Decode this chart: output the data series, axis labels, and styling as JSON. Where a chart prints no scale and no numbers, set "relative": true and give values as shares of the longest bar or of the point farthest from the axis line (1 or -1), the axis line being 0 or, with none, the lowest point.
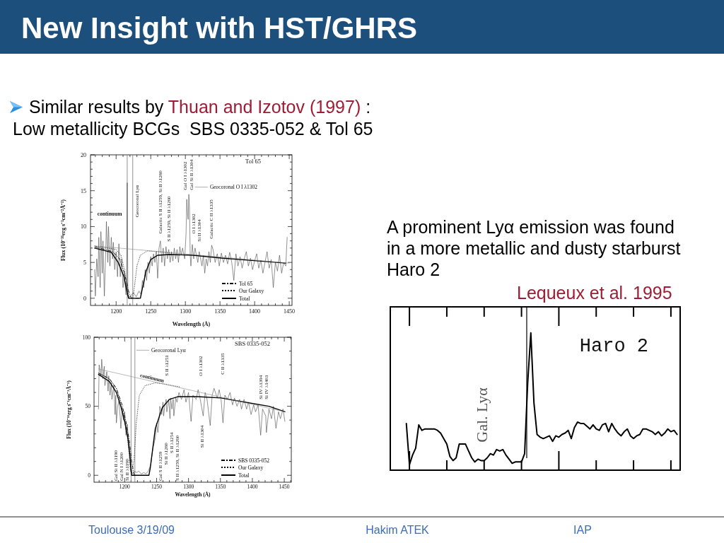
{
  "chart_data": [
    {
      "type": "other",
      "title": "New Insight with HST/GHRS",
      "annotations": [
        "Similar results by",
        "Thuan and Izotov (1997)",
        ":",
        "Low metallicity BCGs  SBS 0335-052 & Tol 65",
        "A prominent Lyα emission was found in a more metallic and dusty starburst Haro 2",
        "Lequeux et al. 1995",
        "Toulouse 3/19/09",
        "Hakim ATEK",
        "IAP"
      ]
    },
    {
      "type": "line",
      "title": "Tol 65",
      "xlabel": "Wavelength (Å)",
      "ylabel": "Flux (10⁻¹⁶erg s⁻¹cm⁻²Å⁻¹)",
      "xlim": [
        1163,
        1454
      ],
      "ylim": [
        -1,
        20
      ],
      "xticks": [
        {
          "value": 1170,
          "label": null
        },
        {
          "value": 1180,
          "label": null
        },
        {
          "value": 1190,
          "label": null
        },
        1200,
        {
          "value": 1210,
          "label": null
        },
        {
          "value": 1220,
          "label": null
        },
        {
          "value": 1230,
          "label": null
        },
        {
          "value": 1240,
          "label": null
        },
        1250,
        {
          "value": 1260,
          "label": null
        },
        {
          "value": 1270,
          "label": null
        },
        {
          "value": 1280,
          "label": null
        },
        {
          "value": 1290,
          "label": null
        },
        1300,
        {
          "value": 1310,
          "label": null
        },
        {
          "value": 1320,
          "label": null
        },
        {
          "value": 1330,
          "label": null
        },
        {
          "value": 1340,
          "label": null
        },
        1350,
        {
          "value": 1360,
          "label": null
        },
        {
          "value": 1370,
          "label": null
        },
        {
          "value": 1380,
          "label": null
        },
        {
          "value": 1390,
          "label": null
        },
        1400,
        {
          "value": 1410,
          "label": null
        },
        {
          "value": 1420,
          "label": null
        },
        {
          "value": 1430,
          "label": null
        },
        {
          "value": 1440,
          "label": null
        },
        1450
      ],
      "yticks": [
        0,
        {
          "value": 1,
          "label": null
        },
        {
          "value": 2,
          "label": null
        },
        {
          "value": 3,
          "label": null
        },
        {
          "value": 4,
          "label": null
        },
        5,
        {
          "value": 6,
          "label": null
        },
        {
          "value": 7,
          "label": null
        },
        {
          "value": 8,
          "label": null
        },
        {
          "value": 9,
          "label": null
        },
        10,
        {
          "value": 11,
          "label": null
        },
        {
          "value": 12,
          "label": null
        },
        {
          "value": 13,
          "label": null
        },
        {
          "value": 14,
          "label": null
        },
        15,
        {
          "value": 16,
          "label": null
        },
        {
          "value": 17,
          "label": null
        },
        {
          "value": 18,
          "label": null
        },
        {
          "value": 19,
          "label": null
        },
        20
      ],
      "legend": "bottom right",
      "series": [
        {
          "color": "#4a4a4a",
          "x": [
            1169,
            1170,
            1172,
            1174,
            1175,
            1177,
            1178,
            1180,
            1181,
            1183,
            1185,
            1186,
            1188,
            1189,
            1191,
            1193,
            1195,
            1196,
            1198,
            1200,
            1202,
            1204,
            1206,
            1208,
            1210,
            1212,
            1214,
            1215,
            1216,
            1217,
            1220,
            1225,
            1229,
            1233,
            1236,
            1238,
            1240,
            1242,
            1244,
            1246,
            1248,
            1250,
            1252,
            1254,
            1256,
            1258,
            1260,
            1262,
            1264,
            1266,
            1268,
            1270,
            1272,
            1274,
            1276,
            1278,
            1280,
            1282,
            1284,
            1286,
            1288,
            1290,
            1292,
            1294,
            1296,
            1299,
            1301,
            1302,
            1303,
            1304,
            1305,
            1306,
            1307,
            1308,
            1310,
            1312,
            1314,
            1316,
            1318,
            1320,
            1322,
            1324,
            1326,
            1328,
            1330,
            1332,
            1334,
            1336,
            1338,
            1340,
            1343,
            1346,
            1349,
            1352,
            1355,
            1358,
            1361,
            1364,
            1367,
            1370,
            1373,
            1376,
            1379,
            1382,
            1385,
            1388,
            1391,
            1394,
            1397,
            1400,
            1403,
            1406,
            1409,
            1412,
            1415,
            1418,
            1421,
            1424,
            1427,
            1430,
            1433,
            1436,
            1439,
            1442,
            1445,
            1447
          ],
          "values": [
            4.0,
            0.3,
            5.5,
            3.0,
            8.5,
            1.5,
            9.3,
            3.5,
            8.0,
            0.3,
            6.5,
            10.7,
            5.0,
            10.0,
            4.5,
            8.5,
            5.5,
            7.8,
            4.0,
            6.5,
            3.0,
            7.6,
            3.0,
            5.5,
            1.5,
            3.5,
            0.5,
            0.5,
            16.1,
            0.3,
            0.2,
            0.8,
            0.2,
            1.0,
            0.5,
            2.5,
            1.5,
            4.0,
            2.5,
            5.0,
            3.5,
            5.8,
            4.5,
            6.2,
            5.0,
            6.5,
            2.8,
            7.0,
            8.0,
            5.0,
            7.0,
            4.5,
            7.2,
            5.5,
            6.8,
            5.0,
            6.5,
            5.2,
            7.0,
            5.5,
            6.8,
            5.0,
            7.2,
            6.0,
            7.0,
            5.5,
            9.0,
            13.8,
            12.0,
            11.0,
            14.5,
            12.5,
            6.0,
            4.5,
            7.5,
            5.5,
            7.0,
            6.0,
            5.0,
            6.5,
            5.5,
            4.5,
            6.0,
            3.5,
            5.5,
            4.5,
            6.5,
            5.0,
            7.4,
            6.8,
            5.0,
            6.2,
            4.5,
            6.3,
            5.0,
            6.0,
            4.8,
            6.4,
            5.0,
            2.5,
            6.2,
            4.5,
            5.8,
            4.2,
            5.5,
            6.5,
            4.5,
            5.6,
            4.0,
            5.2,
            6.2,
            4.2,
            5.3,
            3.5,
            5.0,
            6.5,
            4.2,
            5.4,
            1.5,
            5.0,
            3.8,
            6.0,
            3.5,
            5.0,
            4.5,
            8.5
          ]
        },
        {
          "name": "Tol 65",
          "color": "#000000",
          "line_style": "dashdot",
          "x": [
            1169,
            1195,
            1205,
            1212,
            1218,
            1222,
            1233
          ],
          "values": [
            7.2,
            6.5,
            5.5,
            3.5,
            1.0,
            0,
            0
          ]
        },
        {
          "name": "Our Galaxy",
          "color": "#000000",
          "line_style": "dotted",
          "x": [
            1169,
            1200,
            1207,
            1212,
            1216,
            1219,
            1224,
            1227,
            1230,
            1235,
            1245,
            1260,
            1280
          ],
          "values": [
            7.3,
            6.8,
            6.0,
            4.0,
            1.5,
            0,
            0,
            2.0,
            4.5,
            6.0,
            6.6,
            6.5,
            6.3
          ]
        },
        {
          "name": "Total",
          "color": "#000000",
          "line_style": "solid",
          "x": [
            1169,
            1193,
            1203,
            1211,
            1216,
            1218,
            1235,
            1238,
            1243,
            1250,
            1260,
            1277,
            1311,
            1352,
            1406,
            1445
          ],
          "values": [
            7.0,
            6.4,
            5.0,
            3.1,
            0.8,
            0,
            0,
            1.4,
            3.7,
            5.4,
            6.0,
            6.1,
            6.0,
            5.6,
            5.2,
            4.9
          ]
        },
        {
          "color": "#8a8a8a",
          "x": [
            1169,
            1450
          ],
          "values": [
            7.3,
            4.9
          ]
        }
      ],
      "ref_lines": [
        {
          "axis": "x",
          "value": 1216,
          "color": "#777777"
        },
        {
          "axis": "x",
          "value": 1224,
          "color": "#777777"
        }
      ],
      "annotations": [
        "Geocoronal Lyα",
        "Galactic S II λ1259, Si II λ1260",
        "S II λ1259, Si II λ1260",
        "Gal O I λ1302",
        "Gal Si II λ1304",
        "Geocoronal O I λ1302",
        "O I λ1302",
        "Si II λ1304",
        "Galactic C II λ1335",
        "continuum"
      ]
    },
    {
      "type": "line",
      "title": "SBS 0335-052",
      "xlabel": "Wavelength (Å)",
      "ylabel": "Flux (10⁻¹⁶erg s⁻¹cm⁻²Å⁻¹)",
      "xlim": [
        1152,
        1461
      ],
      "ylim": [
        -5,
        100
      ],
      "xticks": [
        {
          "value": 1160,
          "label": null
        },
        {
          "value": 1170,
          "label": null
        },
        {
          "value": 1180,
          "label": null
        },
        {
          "value": 1190,
          "label": null
        },
        1200,
        {
          "value": 1210,
          "label": null
        },
        {
          "value": 1220,
          "label": null
        },
        {
          "value": 1230,
          "label": null
        },
        {
          "value": 1240,
          "label": null
        },
        1250,
        {
          "value": 1260,
          "label": null
        },
        {
          "value": 1270,
          "label": null
        },
        {
          "value": 1280,
          "label": null
        },
        {
          "value": 1290,
          "label": null
        },
        1300,
        {
          "value": 1310,
          "label": null
        },
        {
          "value": 1320,
          "label": null
        },
        {
          "value": 1330,
          "label": null
        },
        {
          "value": 1340,
          "label": null
        },
        1350,
        {
          "value": 1360,
          "label": null
        },
        {
          "value": 1370,
          "label": null
        },
        {
          "value": 1380,
          "label": null
        },
        {
          "value": 1390,
          "label": null
        },
        1400,
        {
          "value": 1410,
          "label": null
        },
        {
          "value": 1420,
          "label": null
        },
        {
          "value": 1430,
          "label": null
        },
        {
          "value": 1440,
          "label": null
        },
        1450,
        {
          "value": 1460,
          "label": null
        }
      ],
      "yticks": [
        0,
        {
          "value": 10,
          "label": null
        },
        {
          "value": 20,
          "label": null
        },
        {
          "value": 30,
          "label": null
        },
        {
          "value": 40,
          "label": null
        },
        50,
        {
          "value": 60,
          "label": null
        },
        {
          "value": 70,
          "label": null
        },
        {
          "value": 80,
          "label": null
        },
        {
          "value": 90,
          "label": null
        },
        100
      ],
      "legend": "bottom right",
      "series": [
        {
          "color": "#4a4a4a",
          "x": [
            1159,
            1160,
            1163,
            1164,
            1166,
            1168,
            1169,
            1172,
            1174,
            1175,
            1177,
            1179,
            1180,
            1183,
            1185,
            1186,
            1187,
            1189,
            1191,
            1193,
            1194,
            1196,
            1198,
            1200,
            1202,
            1204,
            1206,
            1207,
            1209,
            1211,
            1212,
            1215,
            1219,
            1222,
            1226,
            1230,
            1233,
            1237,
            1241,
            1244,
            1248,
            1250,
            1252,
            1254,
            1255,
            1258,
            1260,
            1261,
            1263,
            1265,
            1266,
            1269,
            1271,
            1272,
            1274,
            1276,
            1277,
            1280,
            1282,
            1285,
            1289,
            1293,
            1296,
            1300,
            1304,
            1307,
            1312,
            1315,
            1318,
            1323,
            1326,
            1329,
            1334,
            1337,
            1340,
            1345,
            1348,
            1351,
            1354,
            1357,
            1361,
            1365,
            1369,
            1372,
            1376,
            1380,
            1383,
            1387,
            1391,
            1394,
            1398,
            1402,
            1405,
            1409,
            1413,
            1416,
            1421,
            1422,
            1426,
            1430,
            1433,
            1437,
            1441,
            1444,
            1448,
            1451
          ],
          "values": [
            48,
            80,
            72,
            84,
            70,
            79,
            65,
            75,
            61,
            72,
            58,
            67,
            55,
            65,
            44,
            58,
            38,
            50,
            54,
            42,
            34,
            49,
            40,
            46,
            29,
            37,
            25,
            20,
            10,
            2,
            1,
            3,
            2,
            3,
            1,
            2,
            1,
            3,
            8,
            19,
            27,
            38,
            31,
            41,
            50,
            44,
            53,
            43,
            51,
            55,
            46,
            55,
            41,
            56,
            48,
            55,
            43,
            56,
            53,
            60,
            55,
            62,
            53,
            60,
            39,
            58,
            55,
            62,
            56,
            43,
            60,
            55,
            36,
            58,
            63,
            56,
            62,
            55,
            38,
            58,
            55,
            60,
            51,
            56,
            50,
            55,
            48,
            55,
            48,
            53,
            44,
            51,
            46,
            51,
            29,
            48,
            43,
            31,
            48,
            41,
            50,
            34,
            46,
            41,
            48,
            39
          ]
        },
        {
          "name": "SBS 0335-052",
          "color": "#000000",
          "line_style": "dashdot",
          "x": [
            1159,
            1176,
            1187,
            1196,
            1202,
            1207,
            1211,
            1215
          ],
          "values": [
            74,
            70,
            63,
            51,
            39,
            26,
            10,
            0
          ]
        },
        {
          "name": "Our Galaxy",
          "color": "#000000",
          "line_style": "dotted",
          "x": [
            1159,
            1176,
            1187,
            1192,
            1198,
            1204,
            1207,
            1209,
            1211,
            1215,
            1218,
            1223,
            1232,
            1248,
            1264,
            1286
          ],
          "values": [
            74,
            70,
            63,
            55,
            44,
            29,
            15,
            3,
            2,
            12,
            37,
            58,
            65,
            67,
            66,
            64
          ]
        },
        {
          "name": "Total",
          "color": "#000000",
          "line_style": "solid",
          "x": [
            1159,
            1176,
            1187,
            1194,
            1200,
            1205,
            1208,
            1210,
            1211,
            1238,
            1240,
            1248,
            1259,
            1270,
            1284,
            1314,
            1351,
            1388,
            1426,
            1451
          ],
          "values": [
            73,
            68,
            60,
            50,
            39,
            27,
            15,
            3,
            0,
            0,
            5,
            34,
            49,
            55,
            57,
            57,
            56,
            53,
            50,
            46
          ]
        },
        {
          "color": "#8a8a8a",
          "x": [
            1159,
            1451
          ],
          "values": [
            77,
            46
          ]
        }
      ],
      "ref_lines": [
        {
          "axis": "x",
          "value": 1210,
          "color": "#777777"
        },
        {
          "axis": "x",
          "value": 1216,
          "color": "#777777"
        }
      ],
      "annotations": [
        "Geocoronal Lyα",
        "S II λ1251",
        "O I λ1302",
        "C II λ1335",
        "Si IV λ1394",
        "Si IV λ1403",
        "Gal Si II λ1190",
        "Gal N I λ1200",
        "Si II λ1190",
        "Gal S II λ1259",
        "Si II λ1260",
        "S II λ1254",
        "S II λ1259, Si II λ1260",
        "Si II λ1304",
        "continuum"
      ]
    },
    {
      "type": "line",
      "relative": true,
      "title": "Haro 2",
      "categories": [
        null,
        null,
        null,
        null,
        null,
        null,
        null,
        null,
        null,
        null,
        null,
        null,
        null,
        null,
        null,
        null,
        null,
        null,
        null,
        null,
        null,
        null,
        null,
        null,
        null,
        null,
        null,
        null,
        null,
        null,
        null,
        null,
        null,
        null,
        null,
        null,
        null,
        null,
        null,
        null,
        null,
        null,
        null,
        null,
        null,
        null,
        null,
        null,
        null,
        null,
        null,
        null,
        null,
        null,
        null,
        null,
        null,
        null,
        null,
        null,
        null,
        null,
        null,
        null,
        null,
        null,
        null,
        null,
        null,
        null,
        null,
        null,
        null,
        null,
        null,
        null,
        null,
        null,
        null,
        null,
        null,
        null,
        null,
        null,
        null,
        null,
        null,
        null
      ],
      "color": "#000000",
      "values": [
        0.34,
        0.04,
        0.11,
        0.16,
        0.33,
        0.29,
        0.3,
        0.3,
        0.3,
        0.3,
        0.29,
        0.27,
        0.23,
        0.19,
        0.1,
        0.07,
        0.09,
        0.19,
        0.19,
        0.19,
        0.14,
        0.09,
        0.06,
        0.08,
        0.07,
        0.07,
        0.09,
        0.12,
        0.11,
        0.15,
        0.14,
        0.15,
        0.11,
        0.08,
        0.05,
        0.06,
        0.06,
        0.06,
        0.12,
        0.64,
        1,
        0.49,
        0.26,
        0.24,
        0.23,
        0.24,
        0.25,
        0.21,
        0.25,
        0.24,
        0.26,
        0.27,
        0.29,
        0.23,
        0.31,
        0.35,
        0.34,
        0.34,
        0.32,
        0.3,
        0.33,
        0.3,
        0.29,
        0.33,
        0.34,
        0.28,
        0.34,
        0.3,
        0.27,
        0.25,
        0.28,
        0.3,
        0.25,
        0.23,
        0.25,
        0.26,
        0.3,
        0.3,
        0.29,
        0.28,
        0.26,
        0.28,
        0.25,
        0.27,
        0.3,
        0.28,
        0.29,
        0.26
      ],
      "annotations": [
        "Gal. Lyα"
      ]
    }
  ]
}
